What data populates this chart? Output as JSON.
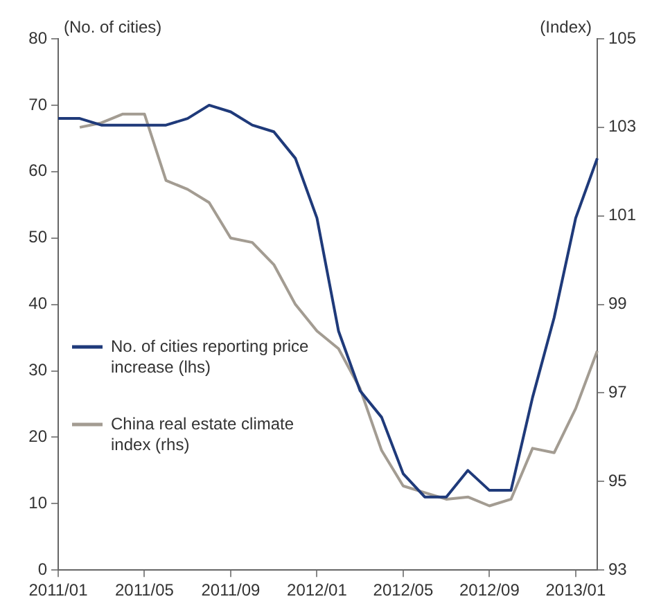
{
  "chart_data": {
    "type": "line",
    "ylabel": "(No. of cities)",
    "y2label": "(Index)",
    "categories": [
      "2011/01",
      null,
      null,
      null,
      "2011/05",
      null,
      null,
      null,
      "2011/09",
      null,
      null,
      null,
      "2012/01",
      null,
      null,
      null,
      "2012/05",
      null,
      null,
      null,
      "2012/09",
      null,
      null,
      null,
      "2013/01",
      null
    ],
    "ylim": [
      0,
      80
    ],
    "yticks": [
      0,
      10,
      20,
      30,
      40,
      50,
      60,
      70,
      80
    ],
    "y2lim": [
      93,
      105
    ],
    "y2ticks": [
      93,
      95,
      97,
      99,
      101,
      103,
      105
    ],
    "series": [
      {
        "name": "No. of cities reporting price increase (lhs)",
        "color": "#1f3a7a",
        "values": [
          68,
          68,
          67,
          67,
          67,
          67,
          68,
          70,
          69,
          67,
          66,
          62,
          53,
          36,
          27,
          23,
          14.5,
          11,
          11,
          15,
          12,
          12,
          26,
          38,
          53,
          62
        ]
      },
      {
        "name": "China real estate climate index (rhs)",
        "color": "#a39c92",
        "axis": "y2",
        "values": [
          null,
          103.0,
          103.1,
          103.3,
          103.3,
          101.8,
          101.6,
          101.3,
          100.5,
          100.4,
          99.9,
          99.0,
          98.4,
          98.0,
          97.1,
          95.7,
          94.9,
          94.75,
          94.6,
          94.65,
          94.45,
          94.6,
          95.75,
          95.65,
          96.65,
          97.95
        ]
      }
    ],
    "grid": false,
    "legend": "left",
    "marker": "none"
  }
}
